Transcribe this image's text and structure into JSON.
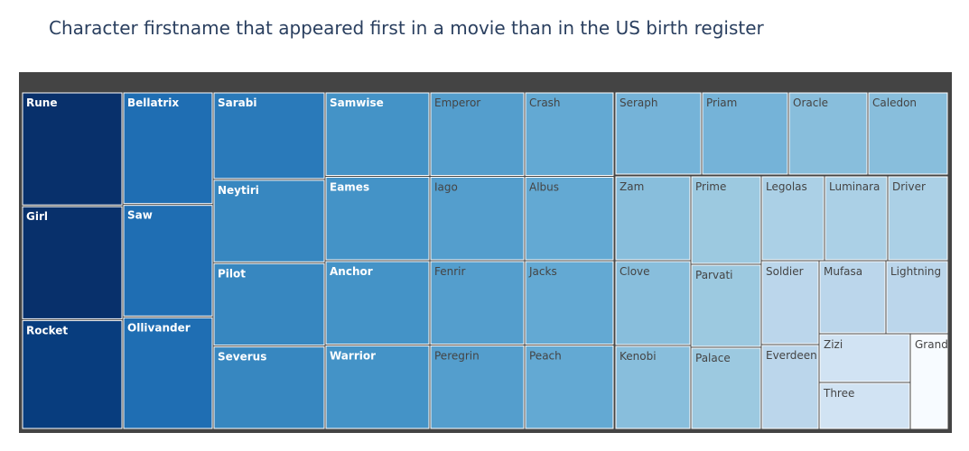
{
  "chart_data": {
    "type": "treemap",
    "title": "Character firstname that appeared first in a movie than in the US birth register",
    "items": [
      {
        "name": "Rune",
        "value": 27
      },
      {
        "name": "Girl",
        "value": 27
      },
      {
        "name": "Rocket",
        "value": 26
      },
      {
        "name": "Bellatrix",
        "value": 22
      },
      {
        "name": "Saw",
        "value": 22
      },
      {
        "name": "Ollivander",
        "value": 22
      },
      {
        "name": "Sarabi",
        "value": 21
      },
      {
        "name": "Neytiri",
        "value": 20
      },
      {
        "name": "Pilot",
        "value": 20
      },
      {
        "name": "Severus",
        "value": 20
      },
      {
        "name": "Samwise",
        "value": 19
      },
      {
        "name": "Eames",
        "value": 19
      },
      {
        "name": "Anchor",
        "value": 19
      },
      {
        "name": "Warrior",
        "value": 19
      },
      {
        "name": "Emperor",
        "value": 18
      },
      {
        "name": "Iago",
        "value": 18
      },
      {
        "name": "Fenrir",
        "value": 18
      },
      {
        "name": "Peregrin",
        "value": 18
      },
      {
        "name": "Crash",
        "value": 17
      },
      {
        "name": "Albus",
        "value": 17
      },
      {
        "name": "Jacks",
        "value": 17
      },
      {
        "name": "Peach",
        "value": 17
      },
      {
        "name": "Seraph",
        "value": 16
      },
      {
        "name": "Priam",
        "value": 16
      },
      {
        "name": "Oracle",
        "value": 15
      },
      {
        "name": "Caledon",
        "value": 15
      },
      {
        "name": "Zam",
        "value": 15
      },
      {
        "name": "Clove",
        "value": 15
      },
      {
        "name": "Kenobi",
        "value": 15
      },
      {
        "name": "Prime",
        "value": 14
      },
      {
        "name": "Parvati",
        "value": 14
      },
      {
        "name": "Palace",
        "value": 14
      },
      {
        "name": "Legolas",
        "value": 13
      },
      {
        "name": "Luminara",
        "value": 13
      },
      {
        "name": "Driver",
        "value": 13
      },
      {
        "name": "Soldier",
        "value": 12
      },
      {
        "name": "Everdeen",
        "value": 12
      },
      {
        "name": "Mufasa",
        "value": 12
      },
      {
        "name": "Lightning",
        "value": 12
      },
      {
        "name": "Zizi",
        "value": 10
      },
      {
        "name": "Three",
        "value": 10
      },
      {
        "name": "Grand",
        "value": 6
      }
    ]
  }
}
